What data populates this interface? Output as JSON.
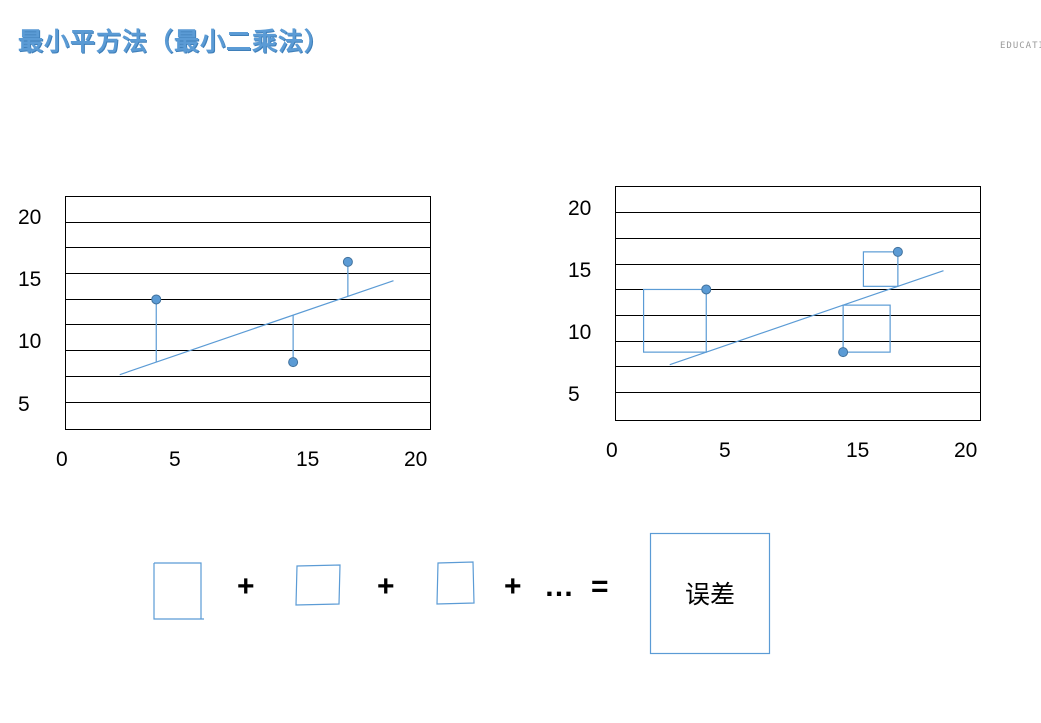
{
  "title": "最小平方法（最小二乘法）",
  "brand": "EDUCATI",
  "chart_data": [
    {
      "type": "scatter",
      "title": "",
      "xlabel": "",
      "ylabel": "",
      "xticks": [
        "0",
        "5",
        "15",
        "20"
      ],
      "yticks": [
        "20",
        "15",
        "10",
        "5"
      ],
      "points": [
        {
          "x": 5,
          "y": 13.5
        },
        {
          "x": 15.5,
          "y": 16.5
        },
        {
          "x": 12.5,
          "y": 8.5
        }
      ],
      "fit_line": {
        "x1": 3,
        "y1": 7.5,
        "x2": 18,
        "y2": 15
      },
      "residual_display": "lines"
    },
    {
      "type": "scatter",
      "title": "",
      "xlabel": "",
      "ylabel": "",
      "xticks": [
        "0",
        "5",
        "15",
        "20"
      ],
      "yticks": [
        "20",
        "15",
        "10",
        "5"
      ],
      "points": [
        {
          "x": 5,
          "y": 13.5
        },
        {
          "x": 15.5,
          "y": 16.5
        },
        {
          "x": 12.5,
          "y": 8.5
        }
      ],
      "fit_line": {
        "x1": 3,
        "y1": 7.5,
        "x2": 18,
        "y2": 15
      },
      "residual_display": "squares"
    }
  ],
  "equation": {
    "plus": "+",
    "ellipsis": "…",
    "equals": "=",
    "result": "误差"
  },
  "colors": {
    "accent": "#5b9bd5",
    "point": "#5b9bd5",
    "point_stroke": "#41719c",
    "grid": "#000000"
  }
}
